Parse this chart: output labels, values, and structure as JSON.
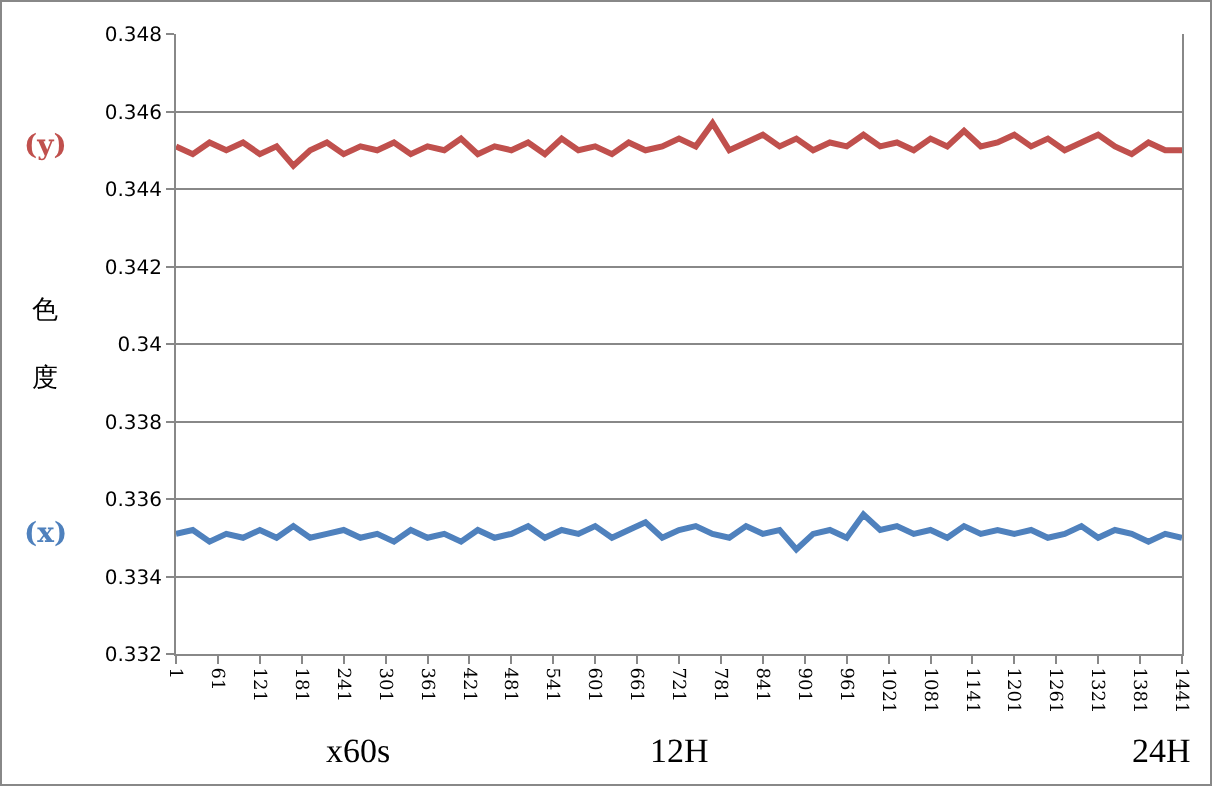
{
  "chart_data": {
    "type": "line",
    "ylabel": "色度",
    "xlabel": "x60s",
    "x": [
      1,
      25,
      49,
      73,
      97,
      121,
      145,
      169,
      193,
      217,
      241,
      265,
      289,
      313,
      337,
      361,
      385,
      409,
      433,
      457,
      481,
      505,
      529,
      553,
      577,
      601,
      625,
      649,
      673,
      697,
      721,
      745,
      769,
      793,
      817,
      841,
      865,
      889,
      913,
      937,
      961,
      985,
      1009,
      1033,
      1057,
      1081,
      1105,
      1129,
      1153,
      1177,
      1201,
      1225,
      1249,
      1273,
      1297,
      1321,
      1345,
      1369,
      1393,
      1417,
      1441
    ],
    "series": [
      {
        "name": "(y)",
        "color": "#c0504d",
        "values": [
          0.3451,
          0.3449,
          0.3452,
          0.345,
          0.3452,
          0.3449,
          0.3451,
          0.3446,
          0.345,
          0.3452,
          0.3449,
          0.3451,
          0.345,
          0.3452,
          0.3449,
          0.3451,
          0.345,
          0.3453,
          0.3449,
          0.3451,
          0.345,
          0.3452,
          0.3449,
          0.3453,
          0.345,
          0.3451,
          0.3449,
          0.3452,
          0.345,
          0.3451,
          0.3453,
          0.3451,
          0.3457,
          0.345,
          0.3452,
          0.3454,
          0.3451,
          0.3453,
          0.345,
          0.3452,
          0.3451,
          0.3454,
          0.3451,
          0.3452,
          0.345,
          0.3453,
          0.3451,
          0.3455,
          0.3451,
          0.3452,
          0.3454,
          0.3451,
          0.3453,
          0.345,
          0.3452,
          0.3454,
          0.3451,
          0.3449,
          0.3452,
          0.345,
          0.345
        ]
      },
      {
        "name": "(x)",
        "color": "#4f81bd",
        "values": [
          0.3351,
          0.3352,
          0.3349,
          0.3351,
          0.335,
          0.3352,
          0.335,
          0.3353,
          0.335,
          0.3351,
          0.3352,
          0.335,
          0.3351,
          0.3349,
          0.3352,
          0.335,
          0.3351,
          0.3349,
          0.3352,
          0.335,
          0.3351,
          0.3353,
          0.335,
          0.3352,
          0.3351,
          0.3353,
          0.335,
          0.3352,
          0.3354,
          0.335,
          0.3352,
          0.3353,
          0.3351,
          0.335,
          0.3353,
          0.3351,
          0.3352,
          0.3347,
          0.3351,
          0.3352,
          0.335,
          0.3356,
          0.3352,
          0.3353,
          0.3351,
          0.3352,
          0.335,
          0.3353,
          0.3351,
          0.3352,
          0.3351,
          0.3352,
          0.335,
          0.3351,
          0.3353,
          0.335,
          0.3352,
          0.3351,
          0.3349,
          0.3351,
          0.335
        ]
      }
    ],
    "xlim": [
      1,
      1441
    ],
    "xticks": [
      1,
      61,
      121,
      181,
      241,
      301,
      361,
      421,
      481,
      541,
      601,
      661,
      721,
      781,
      841,
      901,
      961,
      1021,
      1081,
      1141,
      1201,
      1261,
      1321,
      1381,
      1441
    ],
    "ylim": [
      0.332,
      0.348
    ],
    "yticks": [
      0.332,
      0.334,
      0.336,
      0.338,
      0.34,
      0.342,
      0.344,
      0.346,
      0.348
    ],
    "grid": "y",
    "legend": false,
    "marker": "none",
    "line_style": "solid",
    "annotations": [
      "12H",
      "24H"
    ]
  }
}
